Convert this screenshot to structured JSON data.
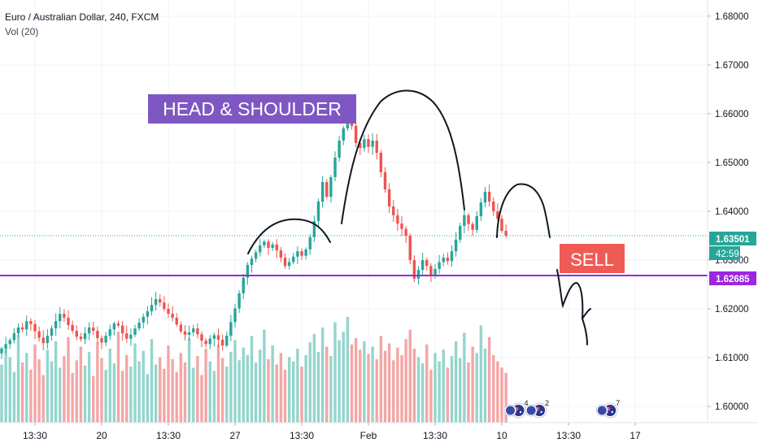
{
  "header": {
    "symbol_title": "Euro / Australian Dollar, 240, FXCM",
    "indicator_label": "Vol (20)"
  },
  "annotations": {
    "pattern_label": "HEAD & SHOULDER",
    "signal_label": "SELL"
  },
  "price_axis": {
    "current_price_badge": "1.63501",
    "countdown_badge": "42:59",
    "level_badge": "1.62685"
  },
  "colors": {
    "up": "#26a69a",
    "down": "#ef5350",
    "volume_up": "#94d5cc",
    "volume_down": "#f4a6a5",
    "level_line": "#9c27e0",
    "current_price_line": "#26a69a",
    "pattern_label_bg": "#7e57c2",
    "signal_label_bg": "#f05a55"
  },
  "chart_data": {
    "type": "candlestick",
    "title": "Euro / Australian Dollar, 240, FXCM",
    "indicator": "Vol (20)",
    "x_axis": {
      "tick_labels": [
        "13:30",
        "20",
        "13:30",
        "27",
        "13:30",
        "Feb",
        "13:30",
        "10",
        "13:30",
        "17"
      ],
      "tick_bar_index": [
        8,
        24,
        40,
        56,
        72,
        88,
        104,
        120,
        136,
        152
      ]
    },
    "y_axis": {
      "range": [
        1.5967,
        1.6833
      ],
      "tick_values": [
        1.6,
        1.61,
        1.62,
        1.63,
        1.64,
        1.65,
        1.66,
        1.67,
        1.68
      ],
      "tick_labels": [
        "1.60000",
        "1.61000",
        "1.62000",
        "1.63000",
        "1.64000",
        "1.65000",
        "1.66000",
        "1.67000",
        "1.68000"
      ]
    },
    "horizontal_lines": [
      {
        "price": 1.62685,
        "style": "solid"
      },
      {
        "price": 1.63501,
        "style": "dotted"
      }
    ],
    "bar_count": 122,
    "close": [
      1.6119,
      1.6128,
      1.6136,
      1.615,
      1.6162,
      1.6158,
      1.6175,
      1.6169,
      1.6154,
      1.6141,
      1.613,
      1.6145,
      1.616,
      1.6175,
      1.619,
      1.6182,
      1.6167,
      1.6155,
      1.6143,
      1.6138,
      1.615,
      1.6162,
      1.6155,
      1.614,
      1.6131,
      1.6145,
      1.6158,
      1.617,
      1.6166,
      1.615,
      1.6139,
      1.6147,
      1.616,
      1.6172,
      1.6184,
      1.6195,
      1.6208,
      1.622,
      1.6213,
      1.62,
      1.619,
      1.6182,
      1.6168,
      1.6154,
      1.6147,
      1.6152,
      1.616,
      1.6148,
      1.6135,
      1.6128,
      1.6139,
      1.6146,
      1.6137,
      1.6125,
      1.6145,
      1.6173,
      1.6201,
      1.6232,
      1.6264,
      1.629,
      1.6303,
      1.6316,
      1.633,
      1.6338,
      1.6325,
      1.6332,
      1.632,
      1.6305,
      1.6288,
      1.6296,
      1.6307,
      1.6318,
      1.6309,
      1.6322,
      1.6347,
      1.638,
      1.642,
      1.646,
      1.643,
      1.647,
      1.651,
      1.6545,
      1.657,
      1.659,
      1.6575,
      1.654,
      1.653,
      1.6548,
      1.6532,
      1.6545,
      1.652,
      1.648,
      1.6445,
      1.641,
      1.6392,
      1.6375,
      1.6364,
      1.635,
      1.63,
      1.6262,
      1.628,
      1.63,
      1.6288,
      1.627,
      1.6282,
      1.6296,
      1.6305,
      1.6298,
      1.6318,
      1.6342,
      1.637,
      1.6392,
      1.6374,
      1.6362,
      1.639,
      1.6418,
      1.644,
      1.642,
      1.64,
      1.6385,
      1.636,
      1.635
    ],
    "volume_relative": [
      0.55,
      0.71,
      0.62,
      0.48,
      0.83,
      0.57,
      0.66,
      0.5,
      0.74,
      0.6,
      0.45,
      0.69,
      0.58,
      0.77,
      0.52,
      0.63,
      0.81,
      0.47,
      0.59,
      0.72,
      0.54,
      0.67,
      0.44,
      0.76,
      0.61,
      0.5,
      0.7,
      0.56,
      0.86,
      0.49,
      0.64,
      0.53,
      0.75,
      0.58,
      0.68,
      0.46,
      0.79,
      0.55,
      0.62,
      0.51,
      0.73,
      0.6,
      0.48,
      0.66,
      0.57,
      0.8,
      0.52,
      0.63,
      0.45,
      0.7,
      0.58,
      0.49,
      0.74,
      0.61,
      0.53,
      0.67,
      0.78,
      0.59,
      0.71,
      0.64,
      0.82,
      0.57,
      0.69,
      0.88,
      0.6,
      0.73,
      0.55,
      0.66,
      0.5,
      0.62,
      0.58,
      0.7,
      0.53,
      0.64,
      0.76,
      0.84,
      0.67,
      0.9,
      0.72,
      0.63,
      0.95,
      0.78,
      0.86,
      1.0,
      0.74,
      0.8,
      0.69,
      0.77,
      0.65,
      0.72,
      0.6,
      0.82,
      0.68,
      0.75,
      0.59,
      0.71,
      0.64,
      0.79,
      0.88,
      0.7,
      0.62,
      0.56,
      0.74,
      0.5,
      0.66,
      0.58,
      0.69,
      0.52,
      0.63,
      0.77,
      0.61,
      0.85,
      0.57,
      0.72,
      0.66,
      0.92,
      0.7,
      0.81,
      0.64,
      0.58,
      0.52,
      0.47
    ],
    "event_markers": [
      {
        "bar_index": 124,
        "count": "4"
      },
      {
        "bar_index": 129,
        "count": "2"
      },
      {
        "bar_index": 146,
        "count": "7"
      }
    ]
  }
}
